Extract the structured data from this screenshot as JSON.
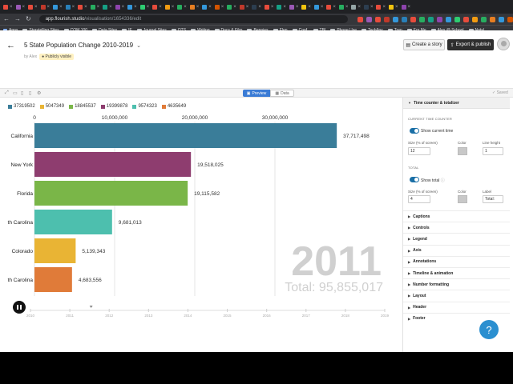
{
  "browser": {
    "address_host": "app.flourish.studio",
    "address_path": "/visualisation/1654336/edit",
    "tab_icon_colors": [
      "#e84b3c",
      "#9b59b6",
      "#e74c3c",
      "#c0392b",
      "#3498db",
      "#2980b9",
      "#e74c3c",
      "#27ae60",
      "#16a085",
      "#8e44ad",
      "#3498db",
      "#2ecc71",
      "#e74c3c",
      "#f39c12",
      "#27ae60",
      "#e67e22",
      "#3498db",
      "#d35400",
      "#27ae60",
      "#c0392b",
      "#2c3e50",
      "#e74c3c",
      "#16a085",
      "#9b59b6",
      "#f1c40f",
      "#3498db",
      "#e74c3c",
      "#27ae60",
      "#95a5a6",
      "#2c3e50",
      "#e74c3c",
      "#f1c40f",
      "#8e44ad"
    ],
    "bookmarks": [
      "Apps",
      "Storytelling Sites",
      "COM 100",
      "Data Sites",
      "IE",
      "Journal Sites",
      "OTS",
      "Writing",
      "Docs & Film",
      "Bennies",
      "Elen",
      "Conf.",
      "TBI",
      "Phone Use",
      "Tech/Inv",
      "Trep",
      "For Me",
      "Alex @ School",
      "Notsl"
    ]
  },
  "header": {
    "title": "5 State Population Change 2010-2019",
    "byline": "by Alex",
    "visibility": "Publicly visible",
    "create_story_label": "Create a story",
    "export_label": "Export & publish"
  },
  "toolbar": {
    "preview_label": "Preview",
    "data_label": "Data",
    "saved_label": "Saved"
  },
  "panel": {
    "open_section": "Time counter & totalizer",
    "current_time_counter": "CURRENT TIME COUNTER",
    "show_current_time": "Show current time",
    "size_label": "Size (% of screen)",
    "color_label": "Color",
    "line_height_label": "Line height",
    "counter_size": "12",
    "counter_line_height": "1",
    "total_heading": "TOTAL",
    "show_total": "Show total",
    "total_size": "4",
    "label_label": "Label",
    "total_label_value": "Total:",
    "sections": [
      "Captions",
      "Controls",
      "Legend",
      "Axis",
      "Annotations",
      "Timeline & animation",
      "Number formatting",
      "Layout",
      "Header",
      "Footer"
    ]
  },
  "help_label": "?",
  "chart_data": {
    "type": "bar",
    "legend": [
      {
        "label": "37319502",
        "color": "#3a7d99"
      },
      {
        "label": "5047349",
        "color": "#e9b434"
      },
      {
        "label": "18845537",
        "color": "#7ab648"
      },
      {
        "label": "19399878",
        "color": "#8e3d6f"
      },
      {
        "label": "9574323",
        "color": "#4dbfae"
      },
      {
        "label": "4635649",
        "color": "#e07b39"
      }
    ],
    "axis_ticks": [
      {
        "value": 0,
        "label": "0"
      },
      {
        "value": 10000000,
        "label": "10,000,000"
      },
      {
        "value": 20000000,
        "label": "20,000,000"
      },
      {
        "value": 30000000,
        "label": "30,000,000"
      }
    ],
    "xlim": [
      0,
      40000000
    ],
    "bars": [
      {
        "label": "California",
        "value": 37717498,
        "value_label": "37,717,498",
        "color": "#3a7d99"
      },
      {
        "label": "New York",
        "value": 19518025,
        "value_label": "19,518,025",
        "color": "#8e3d6f"
      },
      {
        "label": "Florida",
        "value": 19115582,
        "value_label": "19,115,582",
        "color": "#7ab648"
      },
      {
        "label": "th Carolina",
        "value": 9681013,
        "value_label": "9,681,013",
        "color": "#4dbfae"
      },
      {
        "label": "Colorado",
        "value": 5139343,
        "value_label": "5,139,343",
        "color": "#e9b434"
      },
      {
        "label": "th Carolina",
        "value": 4683556,
        "value_label": "4,683,556",
        "color": "#e07b39"
      }
    ],
    "counter": "2011",
    "total_text": "Total: 95,855,017",
    "timeline": [
      "2010",
      "2011",
      "2012",
      "2013",
      "2014",
      "2015",
      "2016",
      "2017",
      "2018",
      "2019"
    ],
    "timeline_position": "2011"
  }
}
